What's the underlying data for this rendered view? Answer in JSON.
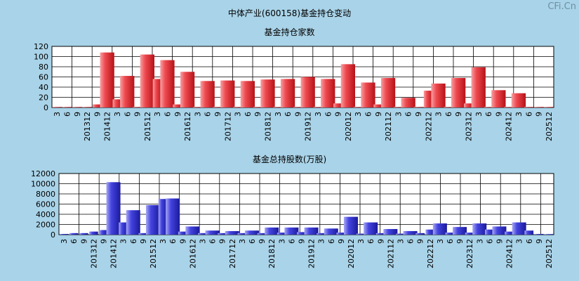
{
  "page": {
    "title": "中体产业(600158)基金持仓变动",
    "watermark": "CFi.Cn"
  },
  "chart_data": [
    {
      "type": "bar",
      "title": "基金持仓家数",
      "xlabel": "",
      "ylabel": "",
      "ylim": [
        0,
        120
      ],
      "yticks": [
        0,
        20,
        40,
        60,
        80,
        100,
        120
      ],
      "grid": true,
      "bar_color": "#e8343a",
      "tick_labels": [
        "3",
        "6",
        "9",
        "201312",
        "9",
        "201412",
        "3",
        "6",
        "9",
        "201512",
        "3",
        "6",
        "9",
        "201612",
        "3",
        "6",
        "9",
        "201712",
        "3",
        "6",
        "9",
        "201812",
        "3",
        "6",
        "9",
        "201912",
        "3",
        "6",
        "9",
        "202012",
        "3",
        "6",
        "9",
        "202112",
        "3",
        "6",
        "9",
        "202212",
        "3",
        "6",
        "9",
        "202312",
        "3",
        "6",
        "9",
        "202412",
        "3",
        "6",
        "9",
        "202512"
      ],
      "values": [
        0,
        0,
        0,
        0,
        6,
        108,
        16,
        62,
        0,
        104,
        56,
        93,
        6,
        70,
        0,
        52,
        0,
        53,
        0,
        52,
        0,
        55,
        0,
        56,
        0,
        60,
        0,
        56,
        8,
        85,
        0,
        49,
        6,
        58,
        0,
        19,
        0,
        33,
        47,
        0,
        58,
        8,
        79,
        0,
        34,
        0,
        28,
        0,
        0,
        0
      ],
      "large_bars": [
        5,
        7,
        9,
        11,
        13,
        15,
        17,
        19,
        21,
        23,
        25,
        27,
        29,
        31,
        33,
        35,
        38,
        40,
        42,
        44,
        46
      ]
    },
    {
      "type": "bar",
      "title": "基金总持股数(万股)",
      "xlabel": "",
      "ylabel": "",
      "ylim": [
        0,
        12000
      ],
      "yticks": [
        0,
        2000,
        4000,
        6000,
        8000,
        10000,
        12000
      ],
      "grid": true,
      "bar_color": "#3a3ad8",
      "tick_labels": [
        "3",
        "6",
        "9",
        "201312",
        "9",
        "201412",
        "3",
        "6",
        "9",
        "201512",
        "3",
        "6",
        "9",
        "201612",
        "3",
        "6",
        "9",
        "201712",
        "3",
        "6",
        "9",
        "201812",
        "3",
        "6",
        "9",
        "201912",
        "3",
        "6",
        "9",
        "202012",
        "3",
        "6",
        "9",
        "202112",
        "3",
        "6",
        "9",
        "202212",
        "3",
        "6",
        "9",
        "202312",
        "3",
        "6",
        "9",
        "202412",
        "3",
        "6",
        "9",
        "202512"
      ],
      "values": [
        100,
        300,
        300,
        600,
        900,
        10300,
        2400,
        4800,
        300,
        5800,
        7000,
        7100,
        600,
        1600,
        300,
        800,
        300,
        700,
        300,
        800,
        300,
        1400,
        400,
        1400,
        500,
        1400,
        300,
        1200,
        400,
        3500,
        200,
        2400,
        300,
        1100,
        200,
        700,
        300,
        1000,
        2200,
        400,
        1500,
        400,
        2200,
        1000,
        1600,
        600,
        2400,
        800,
        100,
        0
      ],
      "large_bars": [
        5,
        7,
        9,
        11,
        13,
        15,
        17,
        19,
        21,
        23,
        25,
        27,
        29,
        31,
        33,
        35,
        38,
        40,
        42,
        44,
        46
      ]
    }
  ]
}
